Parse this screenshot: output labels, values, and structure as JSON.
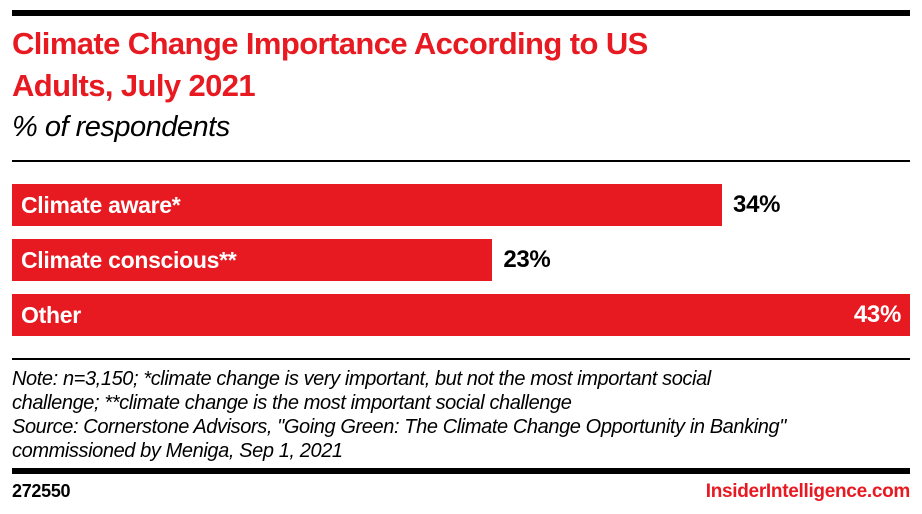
{
  "brand": {
    "accent_red": "#e71921",
    "black": "#000000"
  },
  "header": {
    "title_line1": "Climate Change Importance According to US",
    "title_line2": "Adults, July 2021",
    "subtitle": "% of respondents"
  },
  "chart_data": {
    "type": "bar",
    "orientation": "horizontal",
    "title": "Climate Change Importance According to US Adults, July 2021",
    "subtitle": "% of respondents",
    "categories": [
      "Climate aware*",
      "Climate conscious**",
      "Other"
    ],
    "values": [
      34,
      23,
      43
    ],
    "value_labels": [
      "34%",
      "23%",
      "43%"
    ],
    "axis_max": 43,
    "unit": "% of respondents",
    "bar_color": "#e71921",
    "grid": false,
    "legend": false
  },
  "notes": {
    "lines": [
      "Note: n=3,150; *climate change is very important, but not the most important social",
      "challenge; **climate change is the most important social challenge",
      "Source: Cornerstone Advisors, \"Going Green: The Climate Change Opportunity in Banking\"",
      "commissioned by Meniga, Sep 1, 2021"
    ]
  },
  "footer": {
    "chart_id": "272550",
    "site": "InsiderIntelligence.com"
  }
}
